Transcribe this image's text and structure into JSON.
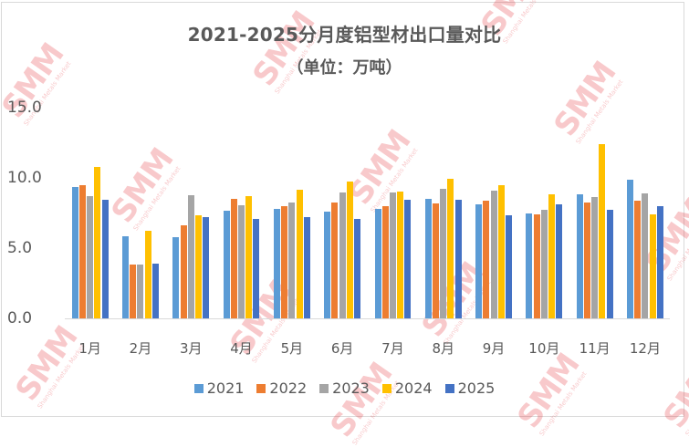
{
  "title": "2021-2025分月度铝型材出口量对比",
  "subtitle": "（单位：万吨）",
  "watermark": {
    "big": "SMM",
    "small": "Shanghai Metals Market"
  },
  "colors": {
    "2021": "#5b9bd5",
    "2022": "#ed7d31",
    "2023": "#a5a5a5",
    "2024": "#ffc000",
    "2025": "#4472c4",
    "text": "#595959",
    "axis": "#d9d9d9"
  },
  "y_ticks": [
    "15.0",
    "10.0",
    "5.0",
    "0.0"
  ],
  "legend": [
    "2021",
    "2022",
    "2023",
    "2024",
    "2025"
  ],
  "chart_data": {
    "type": "bar",
    "title": "2021-2025分月度铝型材出口量对比",
    "subtitle": "（单位：万吨）",
    "xlabel": "",
    "ylabel": "万吨",
    "ylim": [
      0,
      15
    ],
    "y_ticks": [
      0,
      5,
      10,
      15
    ],
    "grid": false,
    "legend_position": "bottom",
    "categories": [
      "1月",
      "2月",
      "3月",
      "4月",
      "5月",
      "6月",
      "7月",
      "8月",
      "9月",
      "10月",
      "11月",
      "12月"
    ],
    "series": [
      {
        "name": "2021",
        "color": "#5b9bd5",
        "values": [
          9.35,
          5.85,
          5.8,
          7.65,
          7.8,
          7.6,
          7.8,
          8.5,
          8.1,
          7.45,
          8.8,
          9.85
        ]
      },
      {
        "name": "2022",
        "color": "#ed7d31",
        "values": [
          9.5,
          3.85,
          6.6,
          8.5,
          8.0,
          8.25,
          8.0,
          8.2,
          8.4,
          7.4,
          8.25,
          8.4
        ]
      },
      {
        "name": "2023",
        "color": "#a5a5a5",
        "values": [
          8.7,
          3.85,
          8.75,
          8.05,
          8.25,
          8.95,
          8.95,
          9.2,
          9.1,
          7.7,
          8.65,
          8.9
        ]
      },
      {
        "name": "2024",
        "color": "#ffc000",
        "values": [
          10.8,
          6.25,
          7.35,
          8.7,
          9.15,
          9.75,
          9.0,
          9.95,
          9.5,
          8.85,
          12.4,
          7.4
        ]
      },
      {
        "name": "2025",
        "color": "#4472c4",
        "values": [
          8.45,
          3.9,
          7.2,
          7.1,
          7.2,
          7.1,
          8.45,
          8.45,
          7.35,
          8.1,
          7.7,
          8.0
        ]
      }
    ]
  }
}
